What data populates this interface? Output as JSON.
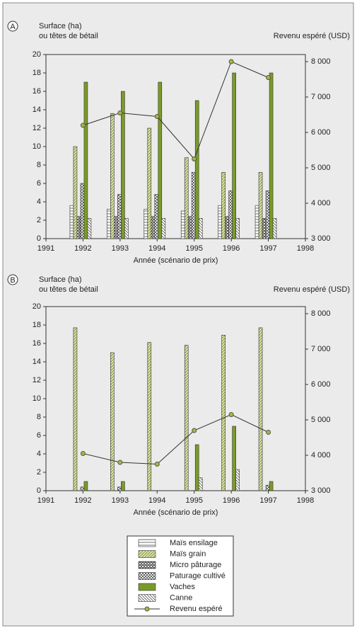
{
  "chart_data": [
    {
      "type": "bar",
      "panel": "A",
      "ylabel": [
        "Surface (ha)",
        "ou têtes de bétail"
      ],
      "y2label": "Revenu espéré (USD)",
      "xlabel": "Année (scénario de prix)",
      "x": [
        1992,
        1993,
        1994,
        1995,
        1996,
        1997
      ],
      "xlim": [
        1991,
        1998
      ],
      "xticks": [
        1991,
        1992,
        1993,
        1994,
        1995,
        1996,
        1997,
        1998
      ],
      "ylim": [
        0,
        20
      ],
      "yticks": [
        0,
        2,
        4,
        6,
        8,
        10,
        12,
        14,
        16,
        18,
        20
      ],
      "y2lim": [
        3000,
        8200
      ],
      "y2ticks": [
        {
          "value": 3000,
          "label": "3 000"
        },
        {
          "value": 4000,
          "label": "4 000"
        },
        {
          "value": 5000,
          "label": "5 000"
        },
        {
          "value": 6000,
          "label": "6 000"
        },
        {
          "value": 7000,
          "label": "7 000"
        },
        {
          "value": 8000,
          "label": "8 000"
        }
      ],
      "series": [
        {
          "name": "Maïs ensilage",
          "color": "#ffffff",
          "pattern": "horizontal",
          "values": [
            3.6,
            3.2,
            3.2,
            3.0,
            3.6,
            3.6
          ]
        },
        {
          "name": "Maïs grain",
          "color": "#d8e0a8",
          "pattern": "diagonal",
          "values": [
            10,
            13.6,
            12,
            8.8,
            7.2,
            7.2
          ]
        },
        {
          "name": "Micro pâturage",
          "color": "#ffffff",
          "pattern": "crosshatch",
          "values": [
            2.4,
            2.4,
            2.4,
            2.4,
            2.4,
            2.2
          ]
        },
        {
          "name": "Paturage cultivé",
          "color": "#ffffff",
          "pattern": "cross",
          "values": [
            6,
            4.8,
            4.8,
            7.2,
            5.2,
            5.2
          ]
        },
        {
          "name": "Vaches",
          "color": "#7a9a28",
          "pattern": "solid",
          "values": [
            17,
            16,
            17,
            15,
            18,
            18
          ]
        },
        {
          "name": "Canne",
          "color": "#ffffff",
          "pattern": "back-diagonal",
          "values": [
            2.2,
            2.2,
            2.2,
            2.2,
            2.2,
            2.2
          ]
        },
        {
          "name": "Revenu espéré",
          "type": "line",
          "axis": "y2",
          "color": "#333333",
          "marker_color": "#a8b83a",
          "values": [
            6200,
            6550,
            6450,
            5250,
            8000,
            7550
          ]
        }
      ]
    },
    {
      "type": "bar",
      "panel": "B",
      "ylabel": [
        "Surface (ha)",
        "ou têtes de bétail"
      ],
      "y2label": "Revenu espéré (USD)",
      "xlabel": "Année (scénario de prix)",
      "x": [
        1992,
        1993,
        1994,
        1995,
        1996,
        1997
      ],
      "xlim": [
        1991,
        1998
      ],
      "xticks": [
        1991,
        1992,
        1993,
        1994,
        1995,
        1996,
        1997,
        1998
      ],
      "ylim": [
        0,
        20
      ],
      "yticks": [
        0,
        2,
        4,
        6,
        8,
        10,
        12,
        14,
        16,
        18,
        20
      ],
      "y2lim": [
        3000,
        8200
      ],
      "y2ticks": [
        {
          "value": 3000,
          "label": "3 000"
        },
        {
          "value": 4000,
          "label": "4 000"
        },
        {
          "value": 5000,
          "label": "5 000"
        },
        {
          "value": 6000,
          "label": "6 000"
        },
        {
          "value": 7000,
          "label": "7 000"
        },
        {
          "value": 8000,
          "label": "8 000"
        }
      ],
      "series": [
        {
          "name": "Maïs ensilage",
          "color": "#ffffff",
          "pattern": "horizontal",
          "values": [
            0,
            0,
            0,
            0,
            0,
            0
          ]
        },
        {
          "name": "Maïs grain",
          "color": "#d8e0a8",
          "pattern": "diagonal",
          "values": [
            17.7,
            15,
            16.1,
            15.8,
            16.9,
            17.7
          ]
        },
        {
          "name": "Micro pâturage",
          "color": "#ffffff",
          "pattern": "crosshatch",
          "values": [
            0,
            0,
            0,
            0,
            0,
            0
          ]
        },
        {
          "name": "Paturage cultivé",
          "color": "#ffffff",
          "pattern": "cross",
          "values": [
            0.4,
            0.4,
            0,
            0,
            0,
            0.6
          ]
        },
        {
          "name": "Vaches",
          "color": "#7a9a28",
          "pattern": "solid",
          "values": [
            1,
            1,
            0,
            5,
            7,
            1
          ]
        },
        {
          "name": "Canne",
          "color": "#ffffff",
          "pattern": "back-diagonal",
          "values": [
            0,
            0,
            0,
            1.4,
            2.3,
            0
          ]
        },
        {
          "name": "Revenu espéré",
          "type": "line",
          "axis": "y2",
          "color": "#333333",
          "marker_color": "#a8b83a",
          "values": [
            4050,
            3800,
            3750,
            4700,
            5150,
            4650
          ]
        }
      ]
    }
  ]
}
